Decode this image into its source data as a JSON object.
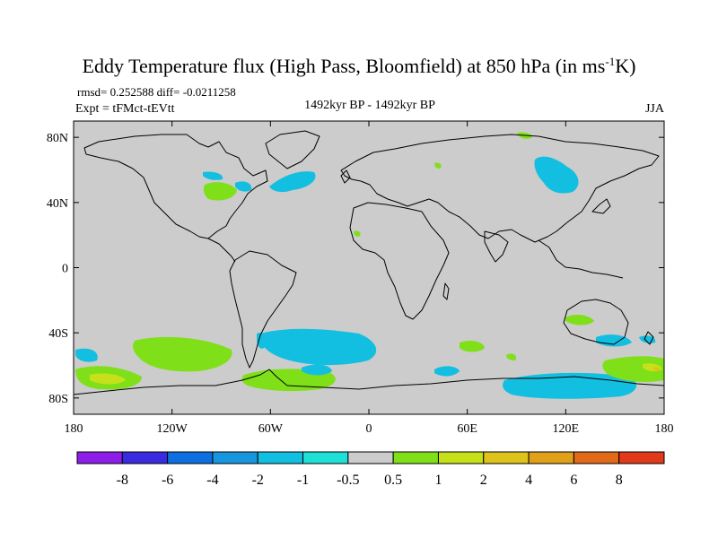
{
  "chart_data": {
    "type": "heatmap",
    "title": "Eddy Temperature flux (High Pass, Bloomfield) at 850 hPa (in ms",
    "title_sup": "-1",
    "title_end": "K)",
    "stats": "rmsd= 0.252588 diff= -0.0211258",
    "experiment": "Expt = tFMct-tEVtt",
    "period": "1492kyr BP - 1492kyr BP",
    "season": "JJA",
    "lon_range": [
      -180,
      180
    ],
    "lat_range": [
      -90,
      90
    ],
    "x_ticks": [
      {
        "value": -180,
        "label": "180"
      },
      {
        "value": -120,
        "label": "120W"
      },
      {
        "value": -60,
        "label": "60W"
      },
      {
        "value": 0,
        "label": "0"
      },
      {
        "value": 60,
        "label": "60E"
      },
      {
        "value": 120,
        "label": "120E"
      },
      {
        "value": 180,
        "label": "180"
      }
    ],
    "y_ticks": [
      {
        "value": 80,
        "label": "80N"
      },
      {
        "value": 40,
        "label": "40N"
      },
      {
        "value": 0,
        "label": "0"
      },
      {
        "value": -40,
        "label": "40S"
      },
      {
        "value": -80,
        "label": "80S"
      }
    ],
    "colorbar": {
      "colors": [
        "#8c1ee8",
        "#3a2ae0",
        "#0d6fe0",
        "#1796df",
        "#13bfe0",
        "#1ee0d6",
        "#cccccc",
        "#7fe01a",
        "#c6e01a",
        "#e0c31a",
        "#e0a01a",
        "#e06a1a",
        "#e03a1a"
      ],
      "labels": [
        "-8",
        "-6",
        "-4",
        "-2",
        "-1",
        "-0.5",
        "0.5",
        "1",
        "2",
        "4",
        "6",
        "8"
      ]
    },
    "anomaly_regions": [
      {
        "name": "north-america-great-lakes",
        "value": 1,
        "lon": -95,
        "lat": 45
      },
      {
        "name": "north-america-east-coast",
        "value": -1,
        "lon": -70,
        "lat": 44
      },
      {
        "name": "north-atlantic",
        "value": -1,
        "lon": -45,
        "lat": 47
      },
      {
        "name": "central-asia",
        "value": -1,
        "lon": 95,
        "lat": 50
      },
      {
        "name": "south-atlantic",
        "value": -1,
        "lon": -10,
        "lat": -45
      },
      {
        "name": "south-pacific",
        "value": 1,
        "lon": -140,
        "lat": -60
      },
      {
        "name": "southern-ocean-indian",
        "value": -1,
        "lon": 110,
        "lat": -75
      },
      {
        "name": "ross-sea",
        "value": 2,
        "lon": -165,
        "lat": -70
      },
      {
        "name": "australia",
        "value": 1,
        "lon": 135,
        "lat": -30
      }
    ]
  }
}
